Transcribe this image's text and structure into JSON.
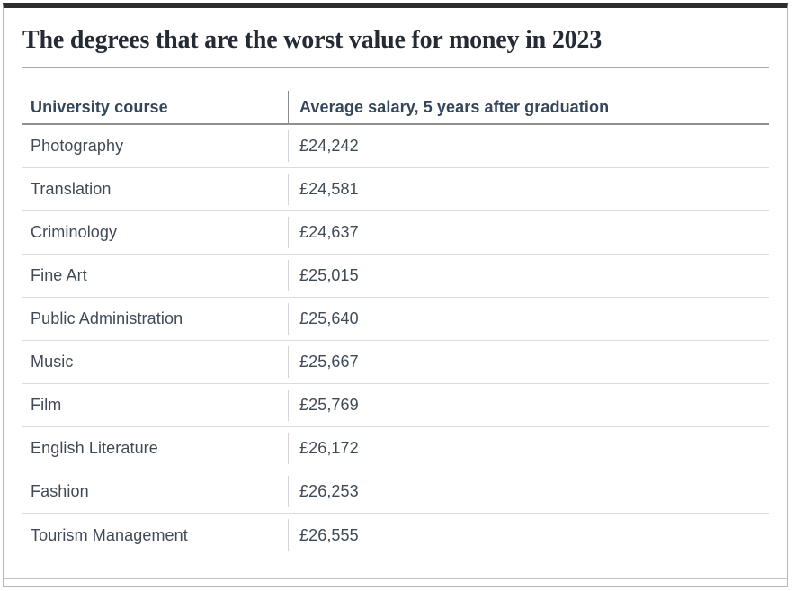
{
  "page": {
    "title": "The degrees that are the worst value for money in 2023"
  },
  "table": {
    "columns": [
      {
        "label": "University course"
      },
      {
        "label": "Average salary, 5 years after graduation"
      }
    ],
    "rows": [
      {
        "course": "Photography",
        "salary": "£24,242"
      },
      {
        "course": "Translation",
        "salary": "£24,581"
      },
      {
        "course": "Criminology",
        "salary": "£24,637"
      },
      {
        "course": "Fine Art",
        "salary": "£25,015"
      },
      {
        "course": "Public Administration",
        "salary": "£25,640"
      },
      {
        "course": "Music",
        "salary": "£25,667"
      },
      {
        "course": "Film",
        "salary": "£25,769"
      },
      {
        "course": "English Literature",
        "salary": "£26,172"
      },
      {
        "course": "Fashion",
        "salary": "£26,253"
      },
      {
        "course": "Tourism Management",
        "salary": "£26,555"
      }
    ]
  },
  "chart_data": {
    "type": "table",
    "title": "The degrees that are the worst value for money in 2023",
    "columns": [
      "University course",
      "Average salary, 5 years after graduation"
    ],
    "rows": [
      [
        "Photography",
        "£24,242"
      ],
      [
        "Translation",
        "£24,581"
      ],
      [
        "Criminology",
        "£24,637"
      ],
      [
        "Fine Art",
        "£25,015"
      ],
      [
        "Public Administration",
        "£25,640"
      ],
      [
        "Music",
        "£25,667"
      ],
      [
        "Film",
        "£25,769"
      ],
      [
        "English Literature",
        "£26,172"
      ],
      [
        "Fashion",
        "£26,253"
      ],
      [
        "Tourism Management",
        "£26,555"
      ]
    ],
    "salary_values_gbp": [
      24242,
      24581,
      24637,
      25015,
      25640,
      25667,
      25769,
      26172,
      26253,
      26555
    ],
    "currency": "GBP"
  },
  "colors": {
    "top_bar": "#2e2e2e",
    "frame_border": "#b5b5b5",
    "title_text": "#242b34",
    "header_text": "#35465a",
    "row_text": "#3f4a57",
    "header_border": "#8f8f8f",
    "row_border": "#dcdcdc"
  }
}
